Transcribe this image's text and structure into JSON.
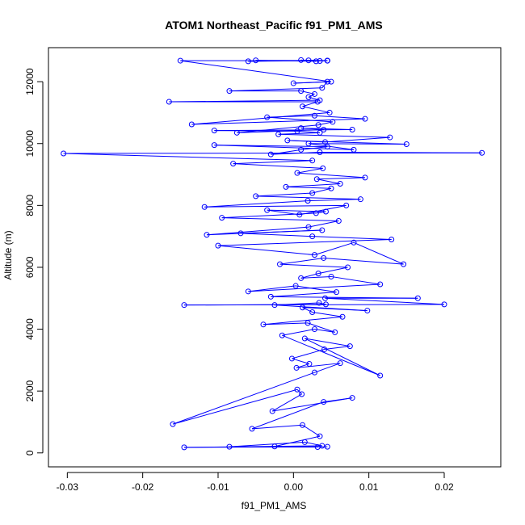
{
  "chart_data": {
    "type": "scatter",
    "title": "ATOM1 Northeast_Pacific f91_PM1_AMS",
    "xlabel": "f91_PM1_AMS",
    "ylabel": "Altitude (m)",
    "xlim": [
      -0.0325,
      0.0275
    ],
    "ylim": [
      -450,
      13100
    ],
    "x_ticks": [
      -0.03,
      -0.02,
      -0.01,
      0.0,
      0.01,
      0.02
    ],
    "x_tick_labels": [
      "-0.03",
      "-0.02",
      "-0.01",
      "0.00",
      "0.01",
      "0.02"
    ],
    "y_ticks": [
      0,
      2000,
      4000,
      6000,
      8000,
      10000,
      12000
    ],
    "y_tick_labels": [
      "0",
      "2000",
      "4000",
      "6000",
      "8000",
      "10000",
      "12000"
    ],
    "grid": false,
    "legend": "none",
    "color": "#0000ff",
    "marker": "open-circle",
    "connected": true,
    "series": [
      {
        "x": [
          0.0045,
          -0.0145,
          0.0038,
          0.0015,
          -0.0085,
          0.0032,
          -0.0025,
          0.0035,
          0.0012,
          -0.0055,
          0.004,
          0.0078,
          -0.0028,
          0.0011,
          0.0005,
          -0.016,
          0.0028,
          0.0062,
          0.0004,
          0.0021,
          -0.0002,
          0.0041,
          0.0075,
          0.0015,
          0.0115,
          -0.0015,
          0.0028,
          0.0055,
          0.0019,
          -0.004,
          0.0065,
          0.0025,
          0.0012,
          0.0098,
          -0.0025,
          0.0034,
          0.0043,
          -0.0145,
          0.02,
          0.0042,
          0.0165,
          -0.003,
          0.0057,
          0.0003,
          -0.006,
          0.0115,
          0.005,
          0.001,
          0.0033,
          0.0072,
          -0.0018,
          0.004,
          0.0146,
          0.008,
          0.0028,
          -0.01,
          0.013,
          0.0025,
          -0.007,
          0.0038,
          -0.0115,
          0.002,
          0.006,
          -0.0095,
          0.003,
          0.0043,
          -0.0035,
          0.0008,
          0.007,
          -0.0118,
          0.0019,
          0.0089,
          -0.005,
          0.0025,
          0.005,
          -0.001,
          0.0062,
          0.0031,
          0.0095,
          0.0005,
          0.0039,
          -0.008,
          0.0025,
          -0.0305,
          0.025,
          0.0035,
          -0.003,
          0.001,
          0.0045,
          -0.0105,
          0.008,
          0.002,
          0.015,
          -0.0008,
          0.0042,
          0.0128,
          -0.002,
          0.0035,
          0.0005,
          -0.0105,
          0.0078,
          0.001,
          0.004,
          -0.0075,
          0.0033,
          0.0052,
          -0.0035,
          0.0028,
          0.0095,
          -0.0135,
          0.0048,
          0.0012,
          0.0032,
          -0.0165,
          0.0035,
          0.002,
          0.0028,
          0.001,
          -0.0085,
          0.0038,
          0.0045,
          0.0,
          0.005,
          -0.015,
          0.0045,
          -0.005,
          0.003,
          0.001,
          0.0045,
          -0.006,
          0.002,
          0.0035,
          0.0045
        ],
        "y": [
          200,
          180,
          230,
          350,
          200,
          190,
          210,
          540,
          900,
          780,
          1650,
          1780,
          1350,
          1900,
          2050,
          930,
          2600,
          2900,
          2750,
          2880,
          3050,
          3350,
          3450,
          3700,
          2500,
          3800,
          4000,
          3900,
          4200,
          4150,
          4400,
          4550,
          4700,
          4600,
          4780,
          4850,
          4800,
          4780,
          4800,
          5000,
          5000,
          5050,
          5200,
          5400,
          5220,
          5450,
          5700,
          5650,
          5800,
          6000,
          6100,
          6300,
          6100,
          6800,
          6400,
          6700,
          6900,
          7000,
          7100,
          7200,
          7050,
          7300,
          7500,
          7600,
          7750,
          7800,
          7850,
          7700,
          8000,
          7950,
          8150,
          8200,
          8300,
          8400,
          8550,
          8600,
          8700,
          8850,
          8900,
          9050,
          9200,
          9350,
          9450,
          9680,
          9700,
          9720,
          9650,
          9800,
          9900,
          9950,
          9800,
          10000,
          9980,
          10100,
          10050,
          10200,
          10300,
          10350,
          10400,
          10420,
          10450,
          10500,
          10450,
          10350,
          10600,
          10700,
          10850,
          10900,
          10800,
          10620,
          11000,
          11200,
          11350,
          11350,
          11400,
          11500,
          11600,
          11700,
          11700,
          11800,
          12000,
          11950,
          12000,
          12680,
          12680,
          12690,
          12660,
          12700,
          12680,
          12660,
          12690,
          12670,
          12680
        ]
      }
    ]
  }
}
